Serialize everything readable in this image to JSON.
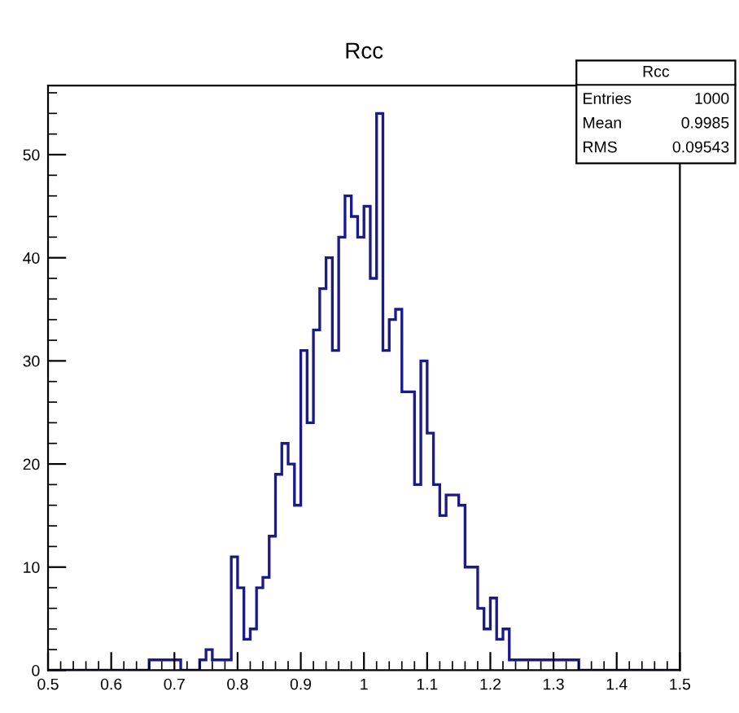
{
  "chart_data": {
    "type": "histogram",
    "title": "Rcc",
    "bins": [
      0.5,
      0.51,
      0.52,
      0.53,
      0.54,
      0.55,
      0.56,
      0.57,
      0.58,
      0.59,
      0.6,
      0.61,
      0.62,
      0.63,
      0.64,
      0.65,
      0.66,
      0.67,
      0.68,
      0.69,
      0.7,
      0.71,
      0.72,
      0.73,
      0.74,
      0.75,
      0.76,
      0.77,
      0.78,
      0.79,
      0.8,
      0.81,
      0.82,
      0.83,
      0.84,
      0.85,
      0.86,
      0.87,
      0.88,
      0.89,
      0.9,
      0.91,
      0.92,
      0.93,
      0.94,
      0.95,
      0.96,
      0.97,
      0.98,
      0.99,
      1.0,
      1.01,
      1.02,
      1.03,
      1.04,
      1.05,
      1.06,
      1.07,
      1.08,
      1.09,
      1.1,
      1.11,
      1.12,
      1.13,
      1.14,
      1.15,
      1.16,
      1.17,
      1.18,
      1.19,
      1.2,
      1.21,
      1.22,
      1.23,
      1.24,
      1.25,
      1.26,
      1.27,
      1.28,
      1.29,
      1.3,
      1.31,
      1.32,
      1.33,
      1.34,
      1.35,
      1.36,
      1.37,
      1.38,
      1.39,
      1.4,
      1.41,
      1.42,
      1.43,
      1.44,
      1.45,
      1.46,
      1.47,
      1.48,
      1.49,
      1.5
    ],
    "values": [
      0,
      0,
      0,
      0,
      0,
      0,
      0,
      0,
      0,
      0,
      0,
      0,
      0,
      0,
      0,
      0,
      1,
      1,
      1,
      1,
      1,
      0,
      0,
      0,
      1,
      2,
      1,
      1,
      1,
      11,
      8,
      3,
      4,
      8,
      9,
      13,
      19,
      22,
      20,
      16,
      31,
      24,
      33,
      37,
      40,
      31,
      42,
      46,
      44,
      42,
      45,
      38,
      54,
      31,
      34,
      35,
      27,
      27,
      18,
      30,
      23,
      18,
      15,
      17,
      17,
      16,
      10,
      10,
      6,
      4,
      7,
      3,
      4,
      1,
      1,
      1,
      1,
      1,
      1,
      1,
      1,
      1,
      1,
      1,
      0,
      0,
      0,
      0,
      0,
      0,
      0,
      0,
      0,
      0,
      0,
      0,
      0,
      0,
      0,
      0
    ],
    "color": "#1a1a8c",
    "xlim": [
      0.5,
      1.5
    ],
    "ylim": [
      0,
      56.7
    ],
    "xticks": [
      0.5,
      0.6,
      0.7,
      0.8,
      0.9,
      {
        "value": 1.0,
        "label": "1"
      },
      1.1,
      1.2,
      1.3,
      1.4,
      1.5
    ],
    "yticks": [
      0,
      10,
      20,
      30,
      40,
      50
    ],
    "grid": false,
    "annotations": [
      "Rcc",
      "Entries",
      "1000",
      "Mean",
      "0.9985",
      "RMS",
      "0.09543"
    ]
  }
}
